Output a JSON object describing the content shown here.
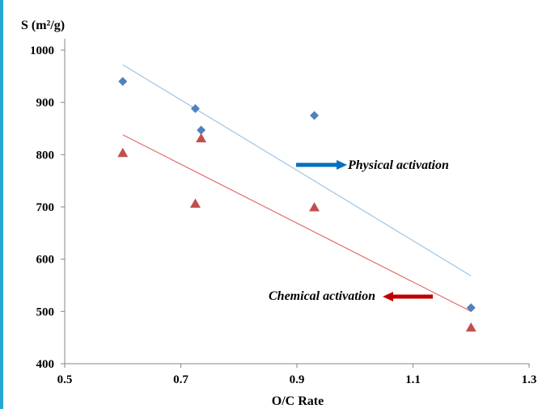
{
  "chart_data": {
    "type": "scatter",
    "ylabel": "S (m²/g)",
    "xlabel": "O/C Rate",
    "xlim": [
      0.5,
      1.3
    ],
    "ylim": [
      400,
      1000
    ],
    "x_ticks": [
      "0.5",
      "0.7",
      "0.9",
      "1.1",
      "1.3"
    ],
    "y_ticks": [
      "400",
      "500",
      "600",
      "700",
      "800",
      "900",
      "1000"
    ],
    "grid": false,
    "series": [
      {
        "key": "physical",
        "marker": "diamond",
        "color": "#4f81bd",
        "trend_color": "#9dc3e6",
        "x": [
          0.6,
          0.725,
          0.735,
          0.93,
          1.2
        ],
        "y": [
          940,
          888,
          847,
          875,
          507
        ],
        "trend": [
          [
            0.6,
            972
          ],
          [
            1.2,
            568
          ]
        ]
      },
      {
        "key": "chemical",
        "marker": "triangle",
        "color": "#c0504d",
        "trend_color": "#e46c6c",
        "x": [
          0.6,
          0.725,
          0.735,
          0.93,
          1.2
        ],
        "y": [
          803,
          706,
          831,
          699,
          469
        ],
        "trend": [
          [
            0.6,
            838
          ],
          [
            1.2,
            500
          ]
        ]
      }
    ],
    "annotations": [
      {
        "text": "Physical activation",
        "arrow_color": "#0070c0",
        "arrow_dir": "right"
      },
      {
        "text": "Chemical activation",
        "arrow_color": "#c00000",
        "arrow_dir": "left"
      }
    ]
  }
}
